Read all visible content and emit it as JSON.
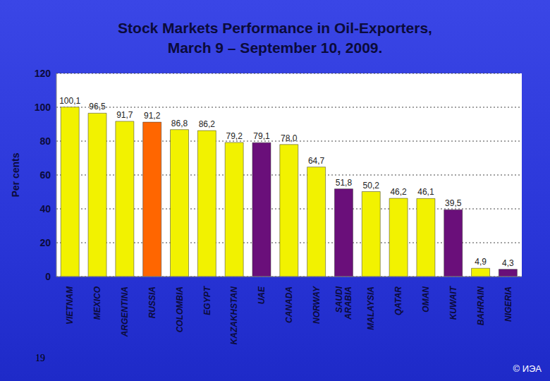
{
  "chart_data": {
    "type": "bar",
    "title": "Stock Markets Performance in Oil-Exporters,\nMarch 9 – September 10, 2009.",
    "y_label": "Per cents",
    "categories": [
      "VIETNAM",
      "MEXICO",
      "ARGENTINA",
      "RUSSIA",
      "COLOMBIA",
      "EGYPT",
      "KAZAKHSTAN",
      "UAE",
      "CANADA",
      "NORWAY",
      "SAUDI ARABIA",
      "MALAYSIA",
      "QATAR",
      "OMAN",
      "KUWAIT",
      "BAHRAIN",
      "NIGERIA"
    ],
    "values": [
      100.1,
      96.5,
      91.7,
      91.2,
      86.8,
      86.2,
      79.2,
      79.1,
      78.0,
      64.7,
      51.8,
      50.2,
      46.2,
      46.1,
      39.5,
      4.9,
      4.3
    ],
    "value_labels": [
      "100,1",
      "96,5",
      "91,7",
      "91,2",
      "86,8",
      "86,2",
      "79,2",
      "79,1",
      "78,0",
      "64,7",
      "51,8",
      "50,2",
      "46,2",
      "46,1",
      "39,5",
      "4,9",
      "4,3"
    ],
    "colors": [
      "#f2f200",
      "#f2f200",
      "#f2f200",
      "#ff6600",
      "#f2f200",
      "#f2f200",
      "#f2f200",
      "#6a0f7a",
      "#f2f200",
      "#f2f200",
      "#6a0f7a",
      "#f2f200",
      "#f2f200",
      "#f2f200",
      "#6a0f7a",
      "#f2f200",
      "#6a0f7a"
    ],
    "ylim": [
      0,
      120
    ],
    "yticks": [
      0,
      20,
      40,
      60,
      80,
      100,
      120
    ],
    "grid": true,
    "data_labels": true,
    "annotations": [
      "19",
      "© ИЭА"
    ]
  }
}
